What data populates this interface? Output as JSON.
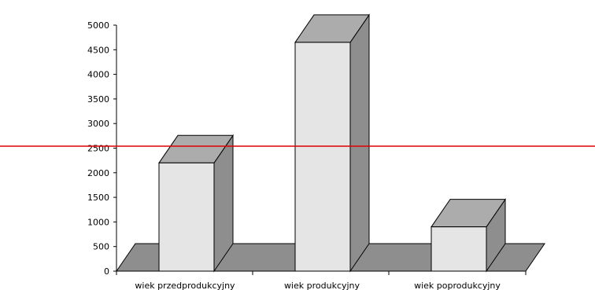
{
  "chart_data": {
    "type": "bar",
    "categories": [
      "wiek przedprodukcyjny",
      "wiek  produkcyjny",
      "wiek poprodukcyjny"
    ],
    "values": [
      2200,
      4650,
      900
    ],
    "ylim": [
      0,
      5000
    ],
    "yticks": [
      "0",
      "500",
      "1000",
      "1500",
      "2000",
      "2500",
      "3000",
      "3500",
      "4000",
      "4500",
      "5000"
    ],
    "reference_line": {
      "value": 2540,
      "color": "#e00000"
    },
    "colors": {
      "bar_front": "#e5e5e5",
      "bar_top": "#acacac",
      "bar_side": "#8e8e8e",
      "floor": "#8e8e8e",
      "outline": "#000000"
    }
  }
}
